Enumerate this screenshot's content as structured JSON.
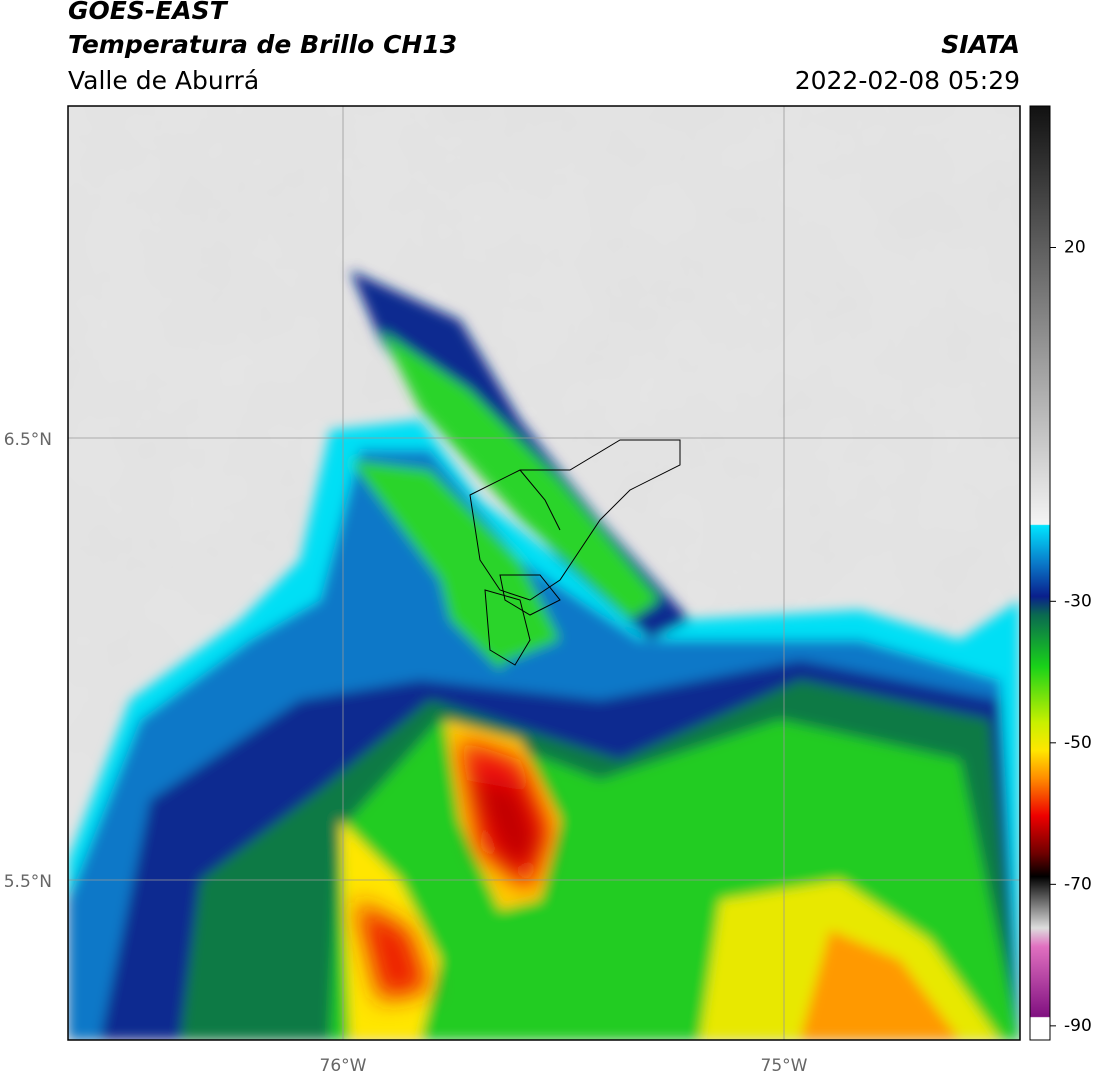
{
  "header": {
    "title": "GOES-EAST",
    "subtitle": "Temperatura de Brillo CH13",
    "region": "Valle de Aburrá",
    "source": "SIATA",
    "datetime": "2022-02-08 05:29"
  },
  "map": {
    "lat_labels": [
      "6.5°N",
      "5.5°N"
    ],
    "lon_labels": [
      "76°W",
      "75°W"
    ]
  },
  "colorbar": {
    "lim": [
      -92,
      40
    ],
    "ticks": [
      20,
      -30,
      -50,
      -70,
      -90
    ]
  }
}
